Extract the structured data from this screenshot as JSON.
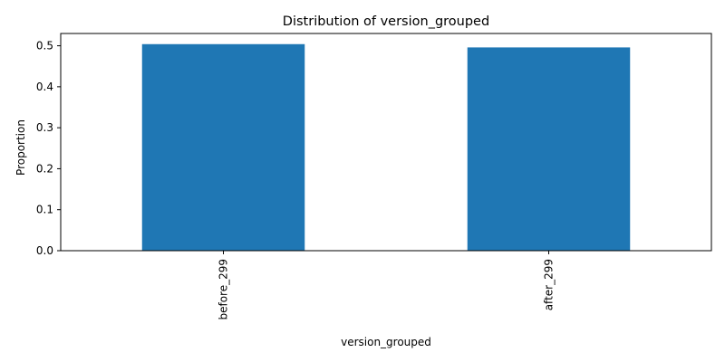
{
  "chart_data": {
    "type": "bar",
    "title": "Distribution of version_grouped",
    "xlabel": "version_grouped",
    "ylabel": "Proportion",
    "categories": [
      "before_299",
      "after_299"
    ],
    "values": [
      0.504,
      0.496
    ],
    "ylim": [
      0,
      0.53
    ],
    "yticks": [
      0.0,
      0.1,
      0.2,
      0.3,
      0.4,
      0.5
    ],
    "ytick_labels": [
      "0.0",
      "0.1",
      "0.2",
      "0.3",
      "0.4",
      "0.5"
    ],
    "grid": false,
    "legend": "none",
    "bar_color": "#1f77b4"
  }
}
